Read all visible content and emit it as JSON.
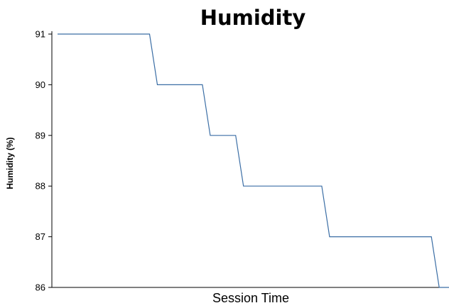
{
  "chart_data": {
    "type": "line",
    "title": "Humidity",
    "xlabel": "Session Time",
    "ylabel": "Humidity (%)",
    "ylim": [
      86,
      91
    ],
    "yticks": [
      86,
      87,
      88,
      89,
      90,
      91
    ],
    "grid": false,
    "legend": "none",
    "line_color": "#3b6ea5",
    "series": [
      {
        "x": [
          0,
          0.235,
          0.255,
          0.37,
          0.39,
          0.455,
          0.475,
          0.675,
          0.695,
          0.955,
          0.975,
          1.0
        ],
        "values": [
          91,
          91,
          90,
          90,
          89,
          89,
          88,
          88,
          87,
          87,
          86,
          86
        ]
      }
    ]
  }
}
